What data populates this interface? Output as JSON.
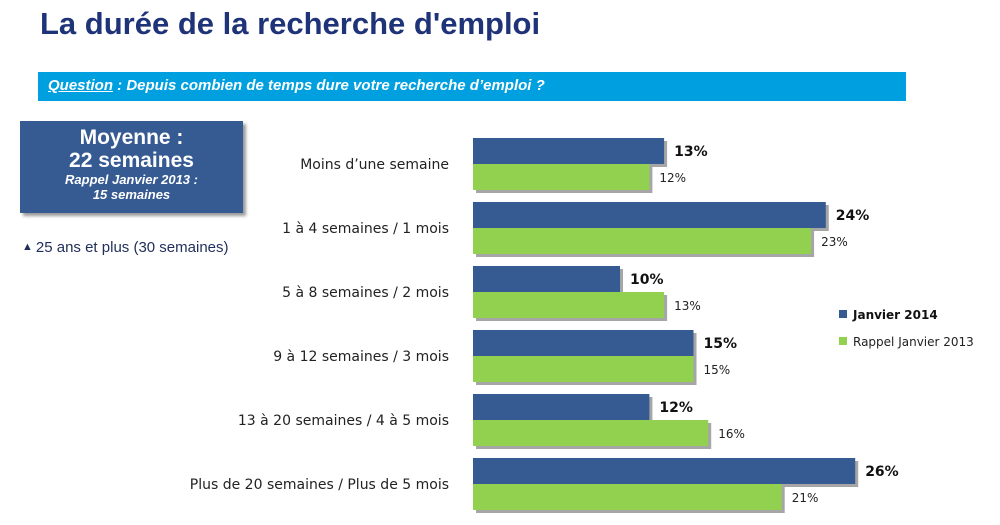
{
  "title": "La durée de la recherche d'emploi",
  "question": {
    "label": "Question",
    "text": " : Depuis combien de temps dure votre recherche d’emploi ?"
  },
  "average_box": {
    "line1": "Moyenne :",
    "line2": "22 semaines",
    "reminder_line1": "Rappel Janvier 2013 :",
    "reminder_line2": "15 semaines"
  },
  "note": {
    "icon": "triangle-up-icon",
    "text": "25 ans et plus (30 semaines)"
  },
  "colors": {
    "title": "#1f3378",
    "banner": "#00a0e0",
    "box": "#365a92",
    "series_2014": "#365a92",
    "series_2013": "#92d050"
  },
  "chart_data": {
    "type": "bar",
    "orientation": "horizontal",
    "categories": [
      "Moins d’une semaine",
      "1 à 4 semaines / 1 mois",
      "5 à 8 semaines / 2 mois",
      "9 à 12 semaines / 3 mois",
      "13 à 20 semaines / 4 à 5 mois",
      "Plus de 20 semaines / Plus de 5 mois"
    ],
    "series": [
      {
        "name": "Janvier 2014",
        "values": [
          13,
          24,
          10,
          15,
          12,
          26
        ],
        "labels": [
          "13%",
          "24%",
          "10%",
          "15%",
          "12%",
          "26%"
        ],
        "color": "#365a92"
      },
      {
        "name": "Rappel Janvier 2013",
        "values": [
          12,
          23,
          13,
          15,
          16,
          21
        ],
        "labels": [
          "12%",
          "23%",
          "13%",
          "15%",
          "16%",
          "21%"
        ],
        "color": "#92d050"
      }
    ],
    "unit": "%",
    "legend_position": "right",
    "grid": false
  }
}
